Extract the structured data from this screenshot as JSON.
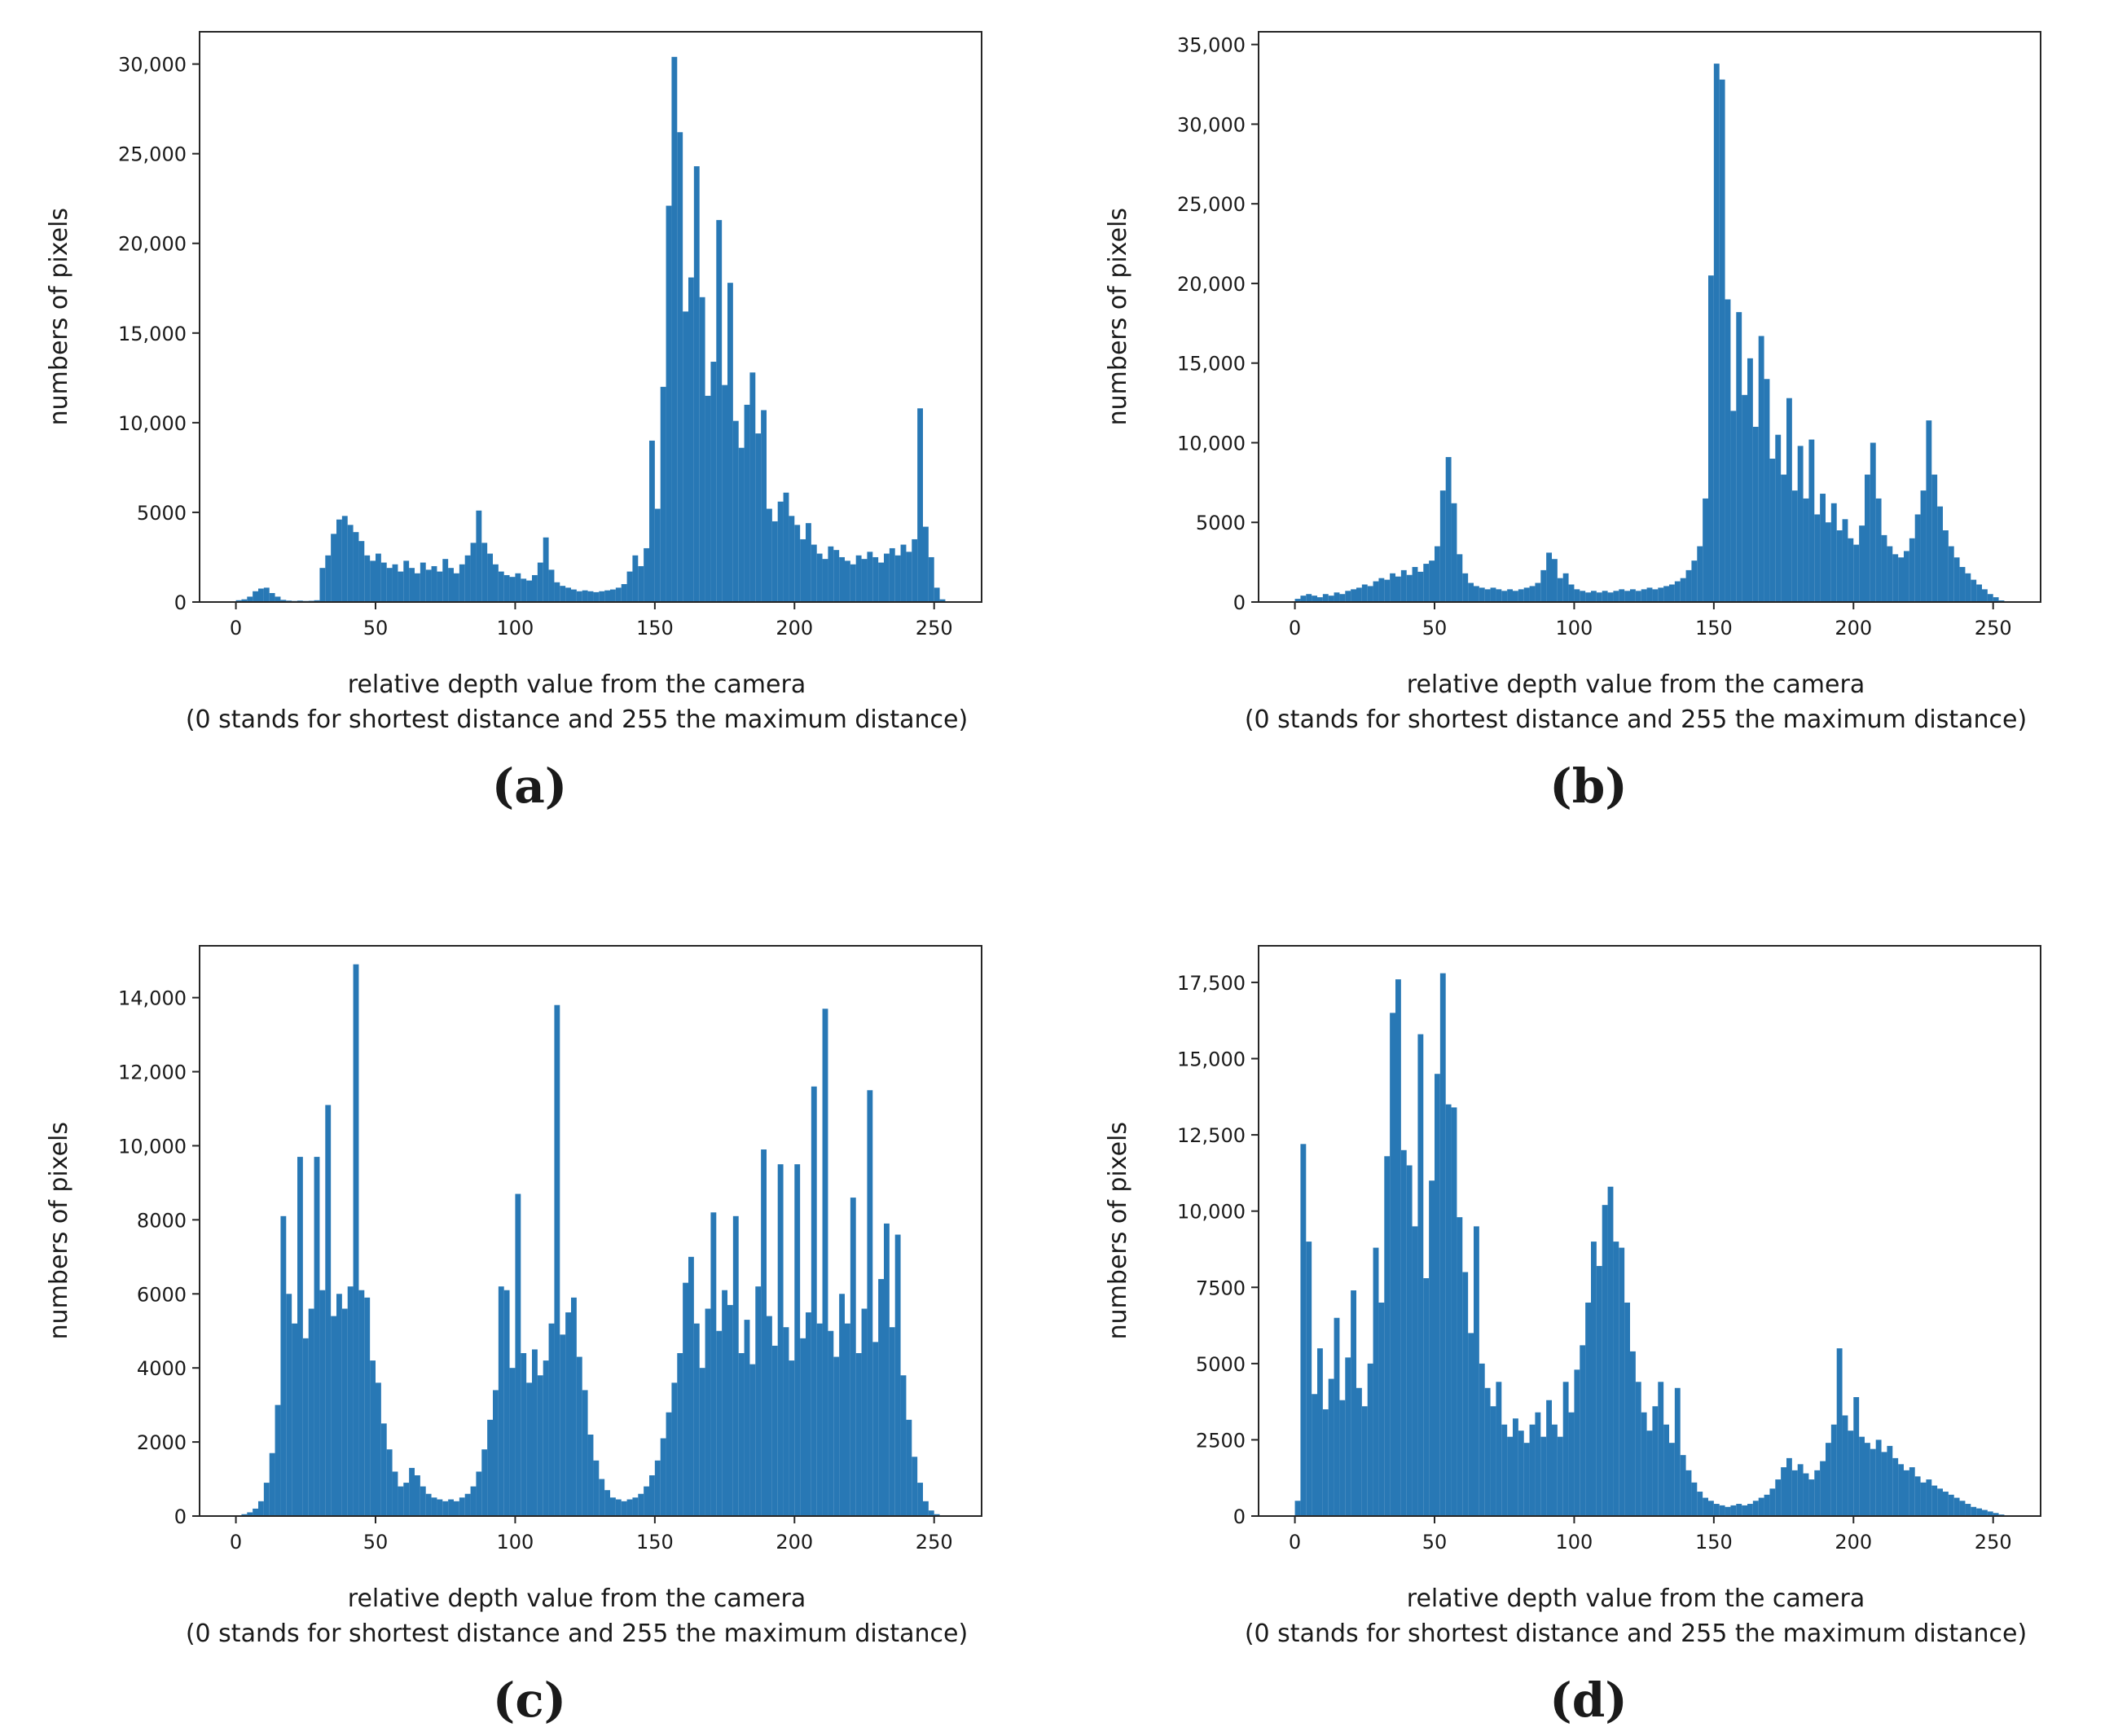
{
  "figure": {
    "bar_color": "#2878b5",
    "axis_color": "#262626",
    "ylabel": "numbers of pixels",
    "xlabel_line1": "relative depth value from the camera",
    "xlabel_line2": "(0 stands for shortest distance and 255 the maximum distance)"
  },
  "chart_data": [
    {
      "id": "a",
      "caption": "(a)",
      "type": "bar",
      "xlabel": "relative depth value from the camera (0 stands for shortest distance and 255 the maximum distance)",
      "ylabel": "numbers of pixels",
      "xlim": [
        -13,
        267
      ],
      "ylim": [
        0,
        31800
      ],
      "grid": false,
      "legend": false,
      "x_ticks": [
        0,
        50,
        100,
        150,
        200,
        250
      ],
      "x_tick_labels": [
        "0",
        "50",
        "100",
        "150",
        "200",
        "250"
      ],
      "y_ticks": [
        0,
        5000,
        10000,
        15000,
        20000,
        25000,
        30000
      ],
      "y_tick_labels": [
        "0",
        "5000",
        "10,000",
        "15,000",
        "20,000",
        "25,000",
        "30,000"
      ],
      "bin_start": 0,
      "bin_width": 2,
      "values": [
        100,
        150,
        300,
        600,
        750,
        800,
        500,
        300,
        120,
        80,
        60,
        80,
        60,
        70,
        100,
        1900,
        2600,
        3800,
        4600,
        4800,
        4300,
        3900,
        3400,
        2600,
        2300,
        2700,
        2200,
        1900,
        2100,
        1700,
        2300,
        1900,
        1600,
        2200,
        1800,
        2000,
        1700,
        2400,
        1900,
        1600,
        2100,
        2600,
        3300,
        5100,
        3300,
        2700,
        2100,
        1700,
        1500,
        1400,
        1600,
        1300,
        1200,
        1500,
        2200,
        3600,
        1800,
        1100,
        900,
        800,
        700,
        600,
        650,
        600,
        550,
        600,
        650,
        700,
        800,
        1000,
        1700,
        2600,
        2000,
        3000,
        9000,
        5200,
        12000,
        22100,
        30400,
        26200,
        16200,
        18100,
        24300,
        17000,
        11500,
        13400,
        21300,
        12100,
        17800,
        10100,
        8600,
        11000,
        12800,
        9400,
        10700,
        5200,
        4500,
        5600,
        6100,
        4800,
        4300,
        3500,
        4400,
        3200,
        2700,
        2400,
        3100,
        2900,
        2500,
        2300,
        2100,
        2600,
        2400,
        2800,
        2500,
        2200,
        2700,
        3000,
        2600,
        3200,
        2800,
        3500,
        10800,
        4200,
        2500,
        800,
        150,
        0
      ]
    },
    {
      "id": "b",
      "caption": "(b)",
      "type": "bar",
      "xlabel": "relative depth value from the camera (0 stands for shortest distance and 255 the maximum distance)",
      "ylabel": "numbers of pixels",
      "xlim": [
        -13,
        267
      ],
      "ylim": [
        0,
        35800
      ],
      "grid": false,
      "legend": false,
      "x_ticks": [
        0,
        50,
        100,
        150,
        200,
        250
      ],
      "x_tick_labels": [
        "0",
        "50",
        "100",
        "150",
        "200",
        "250"
      ],
      "y_ticks": [
        0,
        5000,
        10000,
        15000,
        20000,
        25000,
        30000,
        35000
      ],
      "y_tick_labels": [
        "0",
        "5000",
        "10,000",
        "15,000",
        "20,000",
        "25,000",
        "30,000",
        "35,000"
      ],
      "bin_start": 0,
      "bin_width": 2,
      "values": [
        200,
        400,
        500,
        400,
        300,
        500,
        400,
        600,
        500,
        700,
        800,
        900,
        1100,
        1000,
        1300,
        1500,
        1400,
        1800,
        1600,
        2000,
        1700,
        2200,
        1900,
        2400,
        2600,
        3500,
        7000,
        9100,
        6200,
        3000,
        1800,
        1200,
        1000,
        900,
        800,
        900,
        800,
        700,
        800,
        700,
        800,
        900,
        1000,
        1200,
        2000,
        3100,
        2700,
        1500,
        1800,
        1100,
        800,
        700,
        600,
        700,
        600,
        700,
        600,
        700,
        800,
        700,
        800,
        700,
        800,
        900,
        800,
        900,
        1000,
        1100,
        1300,
        1500,
        2000,
        2600,
        3500,
        6500,
        20500,
        33800,
        32800,
        19000,
        12000,
        18200,
        13000,
        15300,
        11000,
        16700,
        14000,
        9000,
        10500,
        8000,
        12800,
        7000,
        9800,
        6500,
        10200,
        5500,
        6800,
        5000,
        6200,
        4500,
        5200,
        4000,
        3600,
        4800,
        8000,
        10000,
        6500,
        4200,
        3500,
        3000,
        2800,
        3200,
        4000,
        5500,
        7000,
        11400,
        8000,
        6000,
        4500,
        3500,
        2800,
        2200,
        1800,
        1400,
        1100,
        800,
        500,
        300,
        100,
        0
      ]
    },
    {
      "id": "c",
      "caption": "(c)",
      "type": "bar",
      "xlabel": "relative depth value from the camera (0 stands for shortest distance and 255 the maximum distance)",
      "ylabel": "numbers of pixels",
      "xlim": [
        -13,
        267
      ],
      "ylim": [
        0,
        15400
      ],
      "grid": false,
      "legend": false,
      "x_ticks": [
        0,
        50,
        100,
        150,
        200,
        250
      ],
      "x_tick_labels": [
        "0",
        "50",
        "100",
        "150",
        "200",
        "250"
      ],
      "y_ticks": [
        0,
        2000,
        4000,
        6000,
        8000,
        10000,
        12000,
        14000
      ],
      "y_tick_labels": [
        "0",
        "2000",
        "4000",
        "6000",
        "8000",
        "10,000",
        "12,000",
        "14,000"
      ],
      "bin_start": 0,
      "bin_width": 2,
      "values": [
        0,
        50,
        100,
        200,
        400,
        900,
        1700,
        3000,
        8100,
        6000,
        5200,
        9700,
        4800,
        5600,
        9700,
        6100,
        11100,
        5400,
        6000,
        5600,
        6200,
        14900,
        6100,
        5900,
        4200,
        3600,
        2500,
        1800,
        1200,
        800,
        900,
        1300,
        1100,
        800,
        600,
        500,
        450,
        400,
        450,
        400,
        500,
        600,
        800,
        1200,
        1800,
        2600,
        3400,
        6200,
        6100,
        4000,
        8700,
        4400,
        3600,
        4500,
        3800,
        4200,
        5200,
        13800,
        4900,
        5500,
        5900,
        4300,
        3400,
        2200,
        1500,
        1000,
        700,
        500,
        450,
        400,
        450,
        500,
        600,
        800,
        1100,
        1500,
        2100,
        2800,
        3600,
        4400,
        6300,
        7000,
        5200,
        4000,
        5600,
        8200,
        5000,
        6100,
        5700,
        8100,
        4400,
        5300,
        4100,
        6200,
        9900,
        5400,
        4600,
        9500,
        5100,
        4200,
        9500,
        4800,
        5500,
        11600,
        5200,
        13700,
        5000,
        4300,
        6000,
        5200,
        8600,
        4400,
        5600,
        11500,
        4700,
        6400,
        7900,
        5100,
        7600,
        3800,
        2600,
        1600,
        900,
        400,
        150,
        50,
        0,
        0
      ]
    },
    {
      "id": "d",
      "caption": "(d)",
      "type": "bar",
      "xlabel": "relative depth value from the camera (0 stands for shortest distance and 255 the maximum distance)",
      "ylabel": "numbers of pixels",
      "xlim": [
        -13,
        267
      ],
      "ylim": [
        0,
        18700
      ],
      "grid": false,
      "legend": false,
      "x_ticks": [
        0,
        50,
        100,
        150,
        200,
        250
      ],
      "x_tick_labels": [
        "0",
        "50",
        "100",
        "150",
        "200",
        "250"
      ],
      "y_ticks": [
        0,
        2500,
        5000,
        7500,
        10000,
        12500,
        15000,
        17500
      ],
      "y_tick_labels": [
        "0",
        "2500",
        "5000",
        "7500",
        "10,000",
        "12,500",
        "15,000",
        "17,500"
      ],
      "bin_start": 0,
      "bin_width": 2,
      "values": [
        500,
        12200,
        9000,
        4000,
        5500,
        3500,
        4500,
        6500,
        3800,
        5200,
        7400,
        4200,
        3600,
        5000,
        8800,
        7000,
        11800,
        16500,
        17600,
        12000,
        11500,
        9500,
        15800,
        7800,
        11000,
        14500,
        17800,
        13500,
        13400,
        9800,
        8000,
        6000,
        9500,
        5000,
        4200,
        3600,
        4400,
        3000,
        2600,
        3200,
        2800,
        2400,
        3000,
        3400,
        2600,
        3800,
        3000,
        2600,
        4400,
        3400,
        4800,
        5600,
        7000,
        9000,
        8200,
        10200,
        10800,
        9000,
        8800,
        7000,
        5400,
        4400,
        3400,
        2800,
        3600,
        4400,
        3000,
        2400,
        4200,
        2000,
        1500,
        1100,
        800,
        600,
        500,
        400,
        350,
        300,
        350,
        400,
        350,
        400,
        500,
        600,
        700,
        900,
        1200,
        1600,
        1900,
        1500,
        1700,
        1400,
        1200,
        1500,
        1800,
        2400,
        3000,
        5500,
        3300,
        2800,
        3900,
        2600,
        2400,
        2200,
        2500,
        2100,
        2300,
        1900,
        1700,
        1500,
        1600,
        1300,
        1100,
        1200,
        1000,
        900,
        800,
        700,
        600,
        500,
        400,
        300,
        250,
        200,
        150,
        100,
        50,
        0
      ]
    }
  ]
}
